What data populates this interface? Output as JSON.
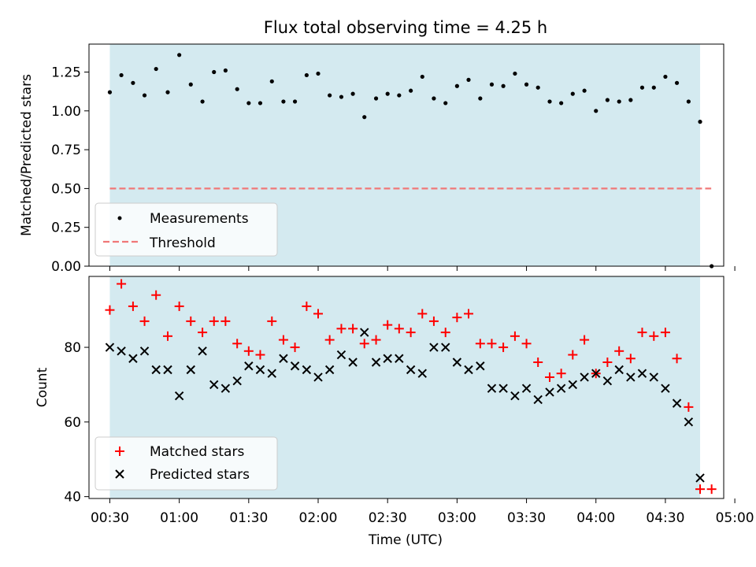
{
  "chart_data": [
    {
      "type": "scatter",
      "title": "Flux total observing time = 4.25 h",
      "ylabel": "Matched/Predicted stars",
      "ylim": [
        0,
        1.43
      ],
      "ytick_labels": [
        "0.00",
        "0.25",
        "0.50",
        "0.75",
        "1.00",
        "1.25"
      ],
      "yticks": [
        0,
        0.25,
        0.5,
        0.75,
        1.0,
        1.25
      ],
      "x_unit": "hours UTC",
      "xlim": [
        0.35,
        4.92
      ],
      "shaded_region": [
        0.5,
        4.75
      ],
      "shade_color": "#d4eaf0",
      "legend_position": "lower-left",
      "series": [
        {
          "name": "Measurements",
          "marker": "dot",
          "color": "#000000",
          "x": [
            0.5,
            0.583,
            0.667,
            0.75,
            0.833,
            0.917,
            1.0,
            1.083,
            1.167,
            1.25,
            1.333,
            1.417,
            1.5,
            1.583,
            1.667,
            1.75,
            1.833,
            1.917,
            2.0,
            2.083,
            2.167,
            2.25,
            2.333,
            2.417,
            2.5,
            2.583,
            2.667,
            2.75,
            2.833,
            2.917,
            3.0,
            3.083,
            3.167,
            3.25,
            3.333,
            3.417,
            3.5,
            3.583,
            3.667,
            3.75,
            3.833,
            3.917,
            4.0,
            4.083,
            4.167,
            4.25,
            4.333,
            4.417,
            4.5,
            4.583,
            4.667,
            4.75,
            4.833
          ],
          "y": [
            1.12,
            1.23,
            1.18,
            1.1,
            1.27,
            1.12,
            1.36,
            1.17,
            1.06,
            1.25,
            1.26,
            1.14,
            1.05,
            1.05,
            1.19,
            1.06,
            1.06,
            1.23,
            1.24,
            1.1,
            1.09,
            1.11,
            0.96,
            1.08,
            1.11,
            1.1,
            1.13,
            1.22,
            1.08,
            1.05,
            1.16,
            1.2,
            1.08,
            1.17,
            1.16,
            1.24,
            1.17,
            1.15,
            1.06,
            1.05,
            1.11,
            1.13,
            1.0,
            1.07,
            1.06,
            1.07,
            1.15,
            1.15,
            1.22,
            1.18,
            1.06,
            0.93,
            0.0
          ]
        },
        {
          "name": "Threshold",
          "style": "dashed",
          "color": "#f07878",
          "x": [
            0.5,
            4.83
          ],
          "y": [
            0.5,
            0.5
          ]
        }
      ]
    },
    {
      "type": "scatter",
      "xlabel": "Time (UTC)",
      "ylabel": "Count",
      "ylim": [
        39.5,
        99
      ],
      "yticks": [
        40,
        60,
        80
      ],
      "ytick_labels": [
        "40",
        "60",
        "80"
      ],
      "xlim": [
        0.35,
        4.92
      ],
      "xticks": [
        0.5,
        1.0,
        1.5,
        2.0,
        2.5,
        3.0,
        3.5,
        4.0,
        4.5,
        5.0
      ],
      "xtick_labels": [
        "00:30",
        "01:00",
        "01:30",
        "02:00",
        "02:30",
        "03:00",
        "03:30",
        "04:00",
        "04:30",
        "05:00"
      ],
      "shaded_region": [
        0.5,
        4.75
      ],
      "shade_color": "#d4eaf0",
      "legend_position": "lower-left",
      "series": [
        {
          "name": "Matched stars",
          "marker": "plus",
          "color": "#ff0000",
          "x": [
            0.5,
            0.583,
            0.667,
            0.75,
            0.833,
            0.917,
            1.0,
            1.083,
            1.167,
            1.25,
            1.333,
            1.417,
            1.5,
            1.583,
            1.667,
            1.75,
            1.833,
            1.917,
            2.0,
            2.083,
            2.167,
            2.25,
            2.333,
            2.417,
            2.5,
            2.583,
            2.667,
            2.75,
            2.833,
            2.917,
            3.0,
            3.083,
            3.167,
            3.25,
            3.333,
            3.417,
            3.5,
            3.583,
            3.667,
            3.75,
            3.833,
            3.917,
            4.0,
            4.083,
            4.167,
            4.25,
            4.333,
            4.417,
            4.5,
            4.583,
            4.667,
            4.75,
            4.833
          ],
          "y": [
            90,
            97,
            91,
            87,
            94,
            83,
            91,
            87,
            84,
            87,
            87,
            81,
            79,
            78,
            87,
            82,
            80,
            91,
            89,
            82,
            85,
            85,
            81,
            82,
            86,
            85,
            84,
            89,
            87,
            84,
            88,
            89,
            81,
            81,
            80,
            83,
            81,
            76,
            72,
            73,
            78,
            82,
            73,
            76,
            79,
            77,
            84,
            83,
            84,
            77,
            64,
            42,
            42
          ]
        },
        {
          "name": "Predicted stars",
          "marker": "x",
          "color": "#000000",
          "x": [
            0.5,
            0.583,
            0.667,
            0.75,
            0.833,
            0.917,
            1.0,
            1.083,
            1.167,
            1.25,
            1.333,
            1.417,
            1.5,
            1.583,
            1.667,
            1.75,
            1.833,
            1.917,
            2.0,
            2.083,
            2.167,
            2.25,
            2.333,
            2.417,
            2.5,
            2.583,
            2.667,
            2.75,
            2.833,
            2.917,
            3.0,
            3.083,
            3.167,
            3.25,
            3.333,
            3.417,
            3.5,
            3.583,
            3.667,
            3.75,
            3.833,
            3.917,
            4.0,
            4.083,
            4.167,
            4.25,
            4.333,
            4.417,
            4.5,
            4.583,
            4.667,
            4.75
          ],
          "y": [
            80,
            79,
            77,
            79,
            74,
            74,
            67,
            74,
            79,
            70,
            69,
            71,
            75,
            74,
            73,
            77,
            75,
            74,
            72,
            74,
            78,
            76,
            84,
            76,
            77,
            77,
            74,
            73,
            80,
            80,
            76,
            74,
            75,
            69,
            69,
            67,
            69,
            66,
            68,
            69,
            70,
            72,
            73,
            71,
            74,
            72,
            73,
            72,
            69,
            65,
            60,
            45
          ]
        }
      ]
    }
  ]
}
